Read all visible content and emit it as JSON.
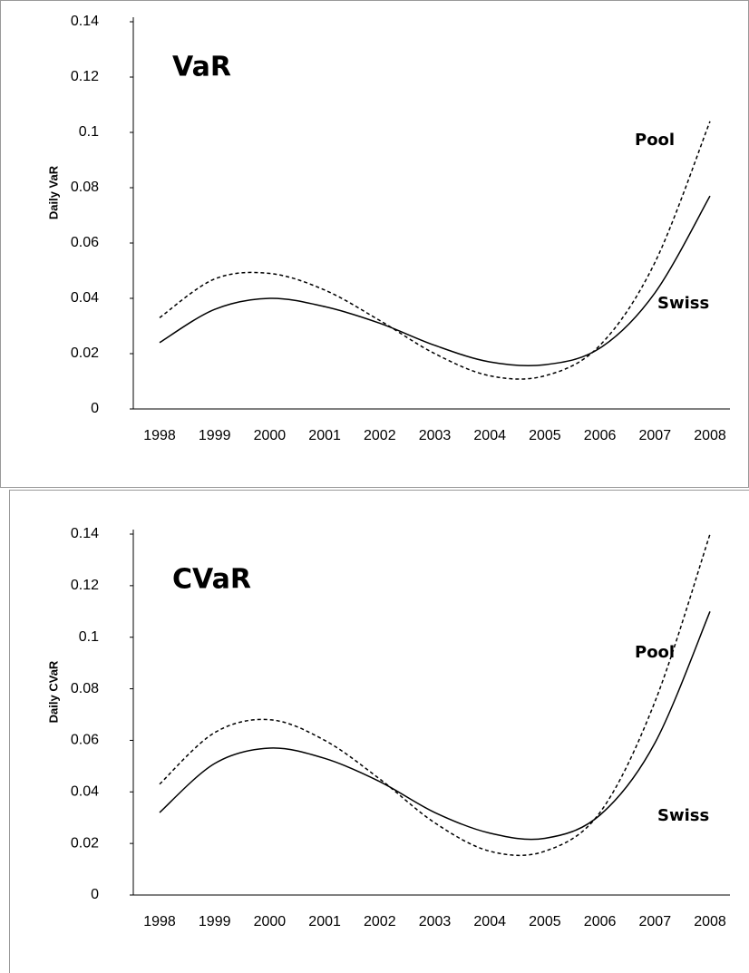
{
  "chart_data": [
    {
      "type": "line",
      "title": "VaR",
      "y_label": "Daily VaR",
      "categories": [
        1998,
        1999,
        2000,
        2001,
        2002,
        2003,
        2004,
        2005,
        2006,
        2007,
        2008
      ],
      "ylim": [
        0,
        0.14
      ],
      "yticks": [
        0,
        0.02,
        0.04,
        0.06,
        0.08,
        0.1,
        0.12,
        0.14
      ],
      "grid": false,
      "series": [
        {
          "name": "Pool",
          "color": "#000000",
          "dashed": true,
          "values": [
            0.033,
            0.047,
            0.049,
            0.043,
            0.032,
            0.02,
            0.012,
            0.012,
            0.023,
            0.053,
            0.104
          ]
        },
        {
          "name": "Swiss",
          "color": "#000000",
          "dashed": false,
          "values": [
            0.024,
            0.036,
            0.04,
            0.037,
            0.031,
            0.023,
            0.017,
            0.016,
            0.022,
            0.042,
            0.077
          ]
        }
      ]
    },
    {
      "type": "line",
      "title": "CVaR",
      "y_label": "Daily CVaR",
      "categories": [
        1998,
        1999,
        2000,
        2001,
        2002,
        2003,
        2004,
        2005,
        2006,
        2007,
        2008
      ],
      "ylim": [
        0,
        0.14
      ],
      "yticks": [
        0,
        0.02,
        0.04,
        0.06,
        0.08,
        0.1,
        0.12,
        0.14
      ],
      "grid": false,
      "series": [
        {
          "name": "Pool",
          "color": "#000000",
          "dashed": true,
          "values": [
            0.043,
            0.063,
            0.068,
            0.06,
            0.045,
            0.028,
            0.017,
            0.017,
            0.032,
            0.075,
            0.14
          ]
        },
        {
          "name": "Swiss",
          "color": "#000000",
          "dashed": false,
          "values": [
            0.032,
            0.051,
            0.057,
            0.053,
            0.044,
            0.032,
            0.024,
            0.022,
            0.031,
            0.059,
            0.11
          ]
        }
      ]
    }
  ]
}
